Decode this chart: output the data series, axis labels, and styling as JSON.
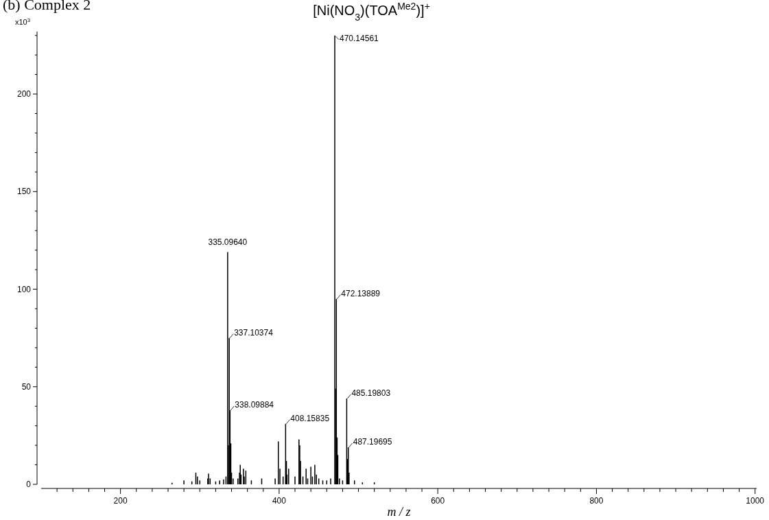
{
  "chart_data": {
    "type": "bar",
    "title": "(b) Complex 2",
    "subtitle": "[Ni(NO$_{3}$)(TOA$^{Me2}$)]$^{+}$",
    "xlabel": "m / z",
    "ylabel": "x10$^{3}$",
    "x": [
      265,
      280,
      290,
      295,
      297,
      300,
      310,
      311,
      313,
      320,
      325,
      330,
      333,
      335.0964,
      336.1,
      337.10374,
      338.09884,
      339.1,
      340,
      342,
      348,
      350,
      351,
      352,
      355,
      356,
      358,
      365,
      378,
      395,
      399,
      401,
      405,
      408.15835,
      409.2,
      410,
      412,
      420,
      425,
      426,
      427,
      430,
      434,
      436,
      440,
      442,
      445,
      447,
      450,
      455,
      460,
      465,
      470.14561,
      471.1,
      472.13889,
      473.1,
      474,
      476,
      480,
      485.19803,
      486.2,
      487.19695,
      488.2,
      495,
      505,
      520
    ],
    "values": [
      0.8,
      2,
      1.5,
      6,
      4,
      2,
      3,
      5.5,
      3,
      1.5,
      2,
      2.5,
      4,
      119,
      20,
      75,
      38,
      21,
      6,
      3,
      3,
      6,
      10,
      5,
      8,
      4,
      7,
      2,
      3,
      3,
      22,
      8,
      4,
      31,
      12,
      5,
      8,
      4,
      23,
      20,
      12,
      4,
      8,
      3,
      9,
      4,
      10,
      5,
      3,
      2,
      2,
      3,
      230,
      49,
      95,
      24,
      15,
      3,
      2,
      44,
      13,
      19,
      6,
      2,
      1,
      1
    ],
    "color": "#000000",
    "xlim": [
      100,
      1002
    ],
    "xticks": [
      {
        "value": 120,
        "label": null
      },
      {
        "value": 140,
        "label": null
      },
      {
        "value": 160,
        "label": null
      },
      {
        "value": 180,
        "label": null
      },
      200,
      {
        "value": 220,
        "label": null
      },
      {
        "value": 240,
        "label": null
      },
      {
        "value": 260,
        "label": null
      },
      {
        "value": 280,
        "label": null
      },
      {
        "value": 300,
        "label": null
      },
      {
        "value": 320,
        "label": null
      },
      {
        "value": 340,
        "label": null
      },
      {
        "value": 360,
        "label": null
      },
      {
        "value": 380,
        "label": null
      },
      400,
      {
        "value": 420,
        "label": null
      },
      {
        "value": 440,
        "label": null
      },
      {
        "value": 460,
        "label": null
      },
      {
        "value": 480,
        "label": null
      },
      {
        "value": 500,
        "label": null
      },
      {
        "value": 520,
        "label": null
      },
      {
        "value": 540,
        "label": null
      },
      {
        "value": 560,
        "label": null
      },
      {
        "value": 580,
        "label": null
      },
      600,
      {
        "value": 620,
        "label": null
      },
      {
        "value": 640,
        "label": null
      },
      {
        "value": 660,
        "label": null
      },
      {
        "value": 680,
        "label": null
      },
      {
        "value": 700,
        "label": null
      },
      {
        "value": 720,
        "label": null
      },
      {
        "value": 740,
        "label": null
      },
      {
        "value": 760,
        "label": null
      },
      {
        "value": 780,
        "label": null
      },
      800,
      {
        "value": 820,
        "label": null
      },
      {
        "value": 840,
        "label": null
      },
      {
        "value": 860,
        "label": null
      },
      {
        "value": 880,
        "label": null
      },
      {
        "value": 900,
        "label": null
      },
      {
        "value": 920,
        "label": null
      },
      {
        "value": 940,
        "label": null
      },
      {
        "value": 960,
        "label": null
      },
      {
        "value": 980,
        "label": null
      },
      1000
    ],
    "ylim": [
      0,
      232
    ],
    "yticks": [
      0,
      {
        "value": 10,
        "label": null
      },
      {
        "value": 20,
        "label": null
      },
      {
        "value": 30,
        "label": null
      },
      {
        "value": 40,
        "label": null
      },
      50,
      {
        "value": 60,
        "label": null
      },
      {
        "value": 70,
        "label": null
      },
      {
        "value": 80,
        "label": null
      },
      {
        "value": 90,
        "label": null
      },
      100,
      {
        "value": 110,
        "label": null
      },
      {
        "value": 120,
        "label": null
      },
      {
        "value": 130,
        "label": null
      },
      {
        "value": 140,
        "label": null
      },
      150,
      {
        "value": 160,
        "label": null
      },
      {
        "value": 170,
        "label": null
      },
      {
        "value": 180,
        "label": null
      },
      {
        "value": 190,
        "label": null
      },
      200,
      {
        "value": 210,
        "label": null
      },
      {
        "value": 220,
        "label": null
      },
      {
        "value": 230,
        "label": null
      }
    ],
    "annotations": [
      {
        "text": "470.14561",
        "x": 470.14561,
        "y": 230
      },
      {
        "text": "335.09640",
        "x": 335.0964,
        "y": 119
      },
      {
        "text": "472.13889",
        "x": 472.13889,
        "y": 95
      },
      {
        "text": "337.10374",
        "x": 337.10374,
        "y": 75
      },
      {
        "text": "485.19803",
        "x": 485.19803,
        "y": 44
      },
      {
        "text": "338.09884",
        "x": 338.09884,
        "y": 38
      },
      {
        "text": "408.15835",
        "x": 408.15835,
        "y": 31
      },
      {
        "text": "487.19695",
        "x": 487.19695,
        "y": 19
      }
    ]
  }
}
